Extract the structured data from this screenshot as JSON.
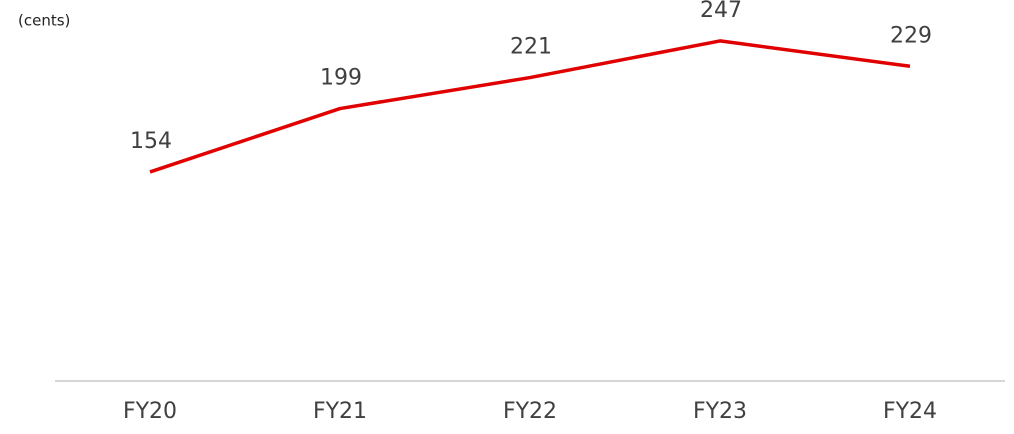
{
  "chart_data": {
    "type": "line",
    "y_label": "(cents)",
    "categories": [
      "FY20",
      "FY21",
      "FY22",
      "FY23",
      "FY24"
    ],
    "values": [
      154,
      199,
      221,
      247,
      229
    ],
    "color": "#e00000",
    "ylim": [
      0,
      280
    ]
  }
}
